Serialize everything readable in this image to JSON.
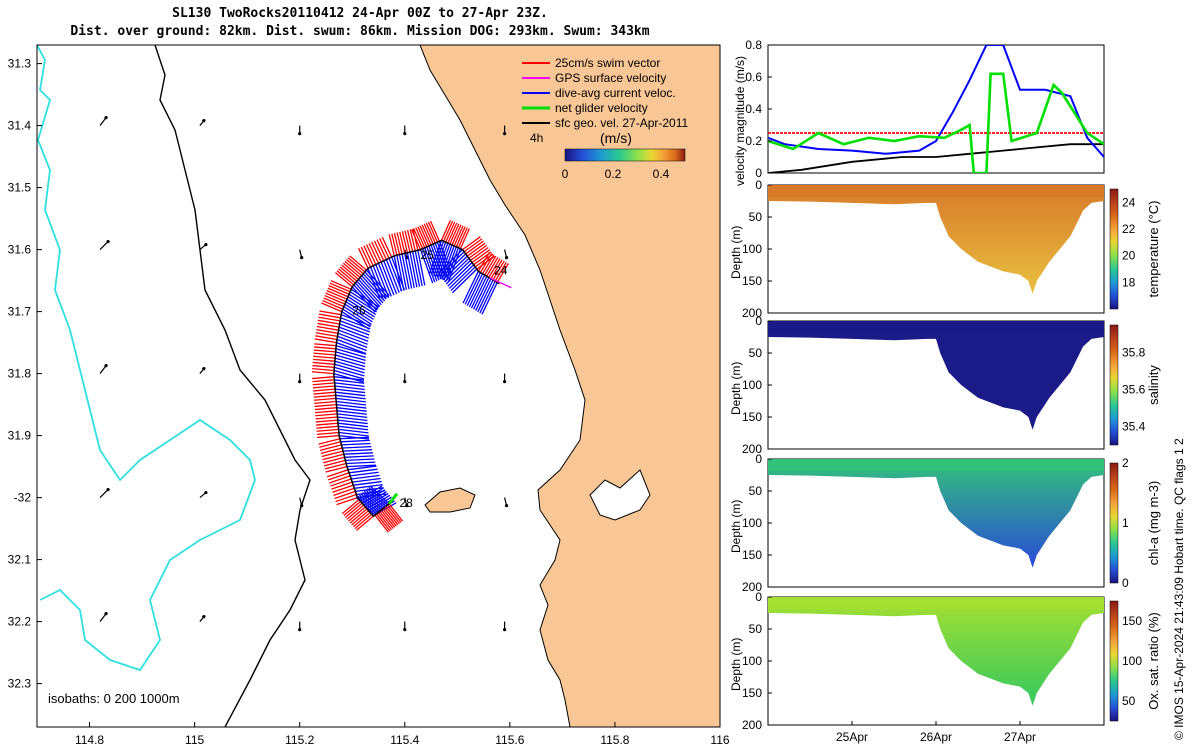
{
  "header": {
    "title_line1": "SL130 TwoRocks20110412 24-Apr 00Z to 27-Apr 23Z.",
    "title_line2": "Dist. over ground: 82km. Dist. swum: 86km. Mission DOG: 293km. Swum: 343km"
  },
  "credit": "© IMOS 15-Apr-2024 21:43:09 Hobart time. QC flags 1  2",
  "colors": {
    "land": "#f9c796",
    "isobath_shallow": "#000000",
    "isobath_deep": "#2ee0e0",
    "swim": "#ff0000",
    "gps": "#ff00ff",
    "current": "#0000ff",
    "net": "#00e000",
    "geo": "#000000"
  },
  "chart_data": [
    {
      "id": "map",
      "type": "scatter",
      "xlim": [
        114.7,
        116
      ],
      "ylim": [
        -32.37,
        -31.27
      ],
      "x_ticks": [
        114.8,
        115,
        115.2,
        115.4,
        115.6,
        115.8,
        116
      ],
      "x_tick_labels": [
        "114.8",
        "115",
        "115.2",
        "115.4",
        "115.6",
        "115.8",
        "116"
      ],
      "y_ticks": [
        -31.3,
        -31.4,
        -31.5,
        -31.6,
        -31.7,
        -31.8,
        -31.9,
        -32,
        -32.1,
        -32.2,
        -32.3
      ],
      "y_tick_labels": [
        "31.3",
        "31.4",
        "31.5",
        "31.6",
        "31.7",
        "31.8",
        "31.9",
        "-32",
        "32.1",
        "32.2",
        "32.3"
      ],
      "legend": {
        "placement": "top-right",
        "entries": [
          "25cm/s swim vector",
          "GPS surface velocity",
          "dive-avg current veloc.",
          "net glider velocity",
          "sfc geo. vel. 27-Apr-2011"
        ]
      },
      "colorbar": {
        "label": "(m/s)",
        "ticks": [
          "0",
          "0.2",
          "0.4"
        ],
        "range": [
          0,
          0.5
        ]
      },
      "time_label": "4h",
      "isobath_note": "isobaths: 0   200  1000m",
      "track": {
        "lon": [
          115.58,
          115.54,
          115.51,
          115.47,
          115.43,
          115.38,
          115.33,
          115.3,
          115.28,
          115.27,
          115.265,
          115.27,
          115.275,
          115.29,
          115.31,
          115.34,
          115.37
        ],
        "lat": [
          -31.655,
          -31.635,
          -31.6,
          -31.585,
          -31.6,
          -31.61,
          -31.63,
          -31.66,
          -31.7,
          -31.75,
          -31.8,
          -31.85,
          -31.9,
          -31.95,
          -32,
          -32.03,
          -32.01
        ]
      },
      "day_labels": [
        {
          "text": "24",
          "lon": 115.57,
          "lat": -31.64
        },
        {
          "text": "25",
          "lon": 115.43,
          "lat": -31.615
        },
        {
          "text": "26",
          "lon": 115.3,
          "lat": -31.705
        },
        {
          "text": "28",
          "lon": 115.39,
          "lat": -32.015
        }
      ]
    },
    {
      "id": "velocity",
      "type": "line",
      "ylabel": "velocity magnitude (m/s)",
      "ylim": [
        0,
        0.8
      ],
      "y_ticks": [
        0,
        0.2,
        0.4,
        0.6,
        0.8
      ],
      "x_range_days": [
        24,
        28
      ],
      "series": [
        {
          "color": "#ff0000",
          "x": [
            24,
            28
          ],
          "y": [
            0.25,
            0.25
          ]
        },
        {
          "color": "#000000",
          "x": [
            24,
            24.4,
            25,
            25.6,
            26,
            26.4,
            26.8,
            27.2,
            27.6,
            28
          ],
          "y": [
            0.0,
            0.02,
            0.07,
            0.1,
            0.1,
            0.12,
            0.14,
            0.16,
            0.18,
            0.18
          ]
        },
        {
          "color": "#0000ff",
          "x": [
            24,
            24.2,
            24.6,
            25,
            25.4,
            25.8,
            26,
            26.2,
            26.4,
            26.6,
            26.8,
            27.0,
            27.3,
            27.6,
            27.8,
            28
          ],
          "y": [
            0.22,
            0.18,
            0.15,
            0.14,
            0.12,
            0.14,
            0.2,
            0.38,
            0.58,
            0.8,
            0.8,
            0.52,
            0.52,
            0.48,
            0.22,
            0.1
          ]
        },
        {
          "color": "#00e000",
          "x": [
            24,
            24.3,
            24.6,
            24.9,
            25.2,
            25.5,
            25.8,
            26.1,
            26.3,
            26.4,
            26.45,
            26.6,
            26.65,
            26.8,
            26.9,
            27.2,
            27.4,
            27.5,
            27.8,
            28
          ],
          "y": [
            0.2,
            0.15,
            0.25,
            0.18,
            0.22,
            0.2,
            0.23,
            0.22,
            0.27,
            0.3,
            0.0,
            0.0,
            0.62,
            0.62,
            0.2,
            0.25,
            0.55,
            0.5,
            0.25,
            0.18
          ]
        }
      ]
    },
    {
      "id": "temperature",
      "type": "heatmap",
      "ylabel": "Depth (m)",
      "colorbar_label": "temperature (°C)",
      "cticks": [
        "18",
        "20",
        "22",
        "24"
      ],
      "clim": [
        16,
        25
      ],
      "ylim": [
        0,
        200
      ],
      "y_ticks": [
        0,
        50,
        100,
        150,
        200
      ],
      "palette": [
        "#1a1380",
        "#2450d8",
        "#1e9ad0",
        "#29c890",
        "#8be04a",
        "#e8d834",
        "#f4a13a",
        "#d86a18",
        "#b8421a",
        "#8b1a14"
      ],
      "surface_color": "#d87a2a",
      "deep_color": "#e8c040"
    },
    {
      "id": "salinity",
      "type": "heatmap",
      "ylabel": "Depth (m)",
      "colorbar_label": "salinity",
      "cticks": [
        "35.4",
        "35.6",
        "35.8"
      ],
      "clim": [
        35.3,
        35.95
      ],
      "ylim": [
        0,
        200
      ],
      "y_ticks": [
        0,
        50,
        100,
        150,
        200
      ],
      "palette": [
        "#1a1380",
        "#2450d8",
        "#1e9ad0",
        "#29c890",
        "#8be04a",
        "#e8d834",
        "#f4a13a",
        "#d86a18",
        "#b8421a",
        "#8b1a14"
      ],
      "surface_color": "#1a1a88",
      "deep_color": "#1a1a88"
    },
    {
      "id": "chla",
      "type": "heatmap",
      "ylabel": "Depth (m)",
      "colorbar_label": "chl-a (mg m-3)",
      "cticks": [
        "0",
        "1",
        "2"
      ],
      "clim": [
        0,
        2
      ],
      "ylim": [
        0,
        200
      ],
      "y_ticks": [
        0,
        50,
        100,
        150,
        200
      ],
      "palette": [
        "#1a1380",
        "#2450d8",
        "#1e9ad0",
        "#29c890",
        "#8be04a",
        "#e8d834",
        "#f4a13a",
        "#d86a18",
        "#b8421a",
        "#8b1a14"
      ],
      "surface_color": "#34c27a",
      "deep_color": "#2a4ad8"
    },
    {
      "id": "oxygen",
      "type": "heatmap",
      "ylabel": "Depth (m)",
      "colorbar_label": "Ox. sat. ratio (%)",
      "cticks": [
        "50",
        "100",
        "150"
      ],
      "clim": [
        25,
        175
      ],
      "ylim": [
        0,
        200
      ],
      "y_ticks": [
        0,
        50,
        100,
        150,
        200
      ],
      "x_tick_labels": [
        "25Apr",
        "26Apr",
        "27Apr"
      ],
      "palette": [
        "#1a1380",
        "#2450d8",
        "#1e9ad0",
        "#29c890",
        "#8be04a",
        "#e8d834",
        "#f4a13a",
        "#d86a18",
        "#b8421a",
        "#8b1a14"
      ],
      "surface_color": "#a6e030",
      "deep_color": "#34c860"
    }
  ]
}
